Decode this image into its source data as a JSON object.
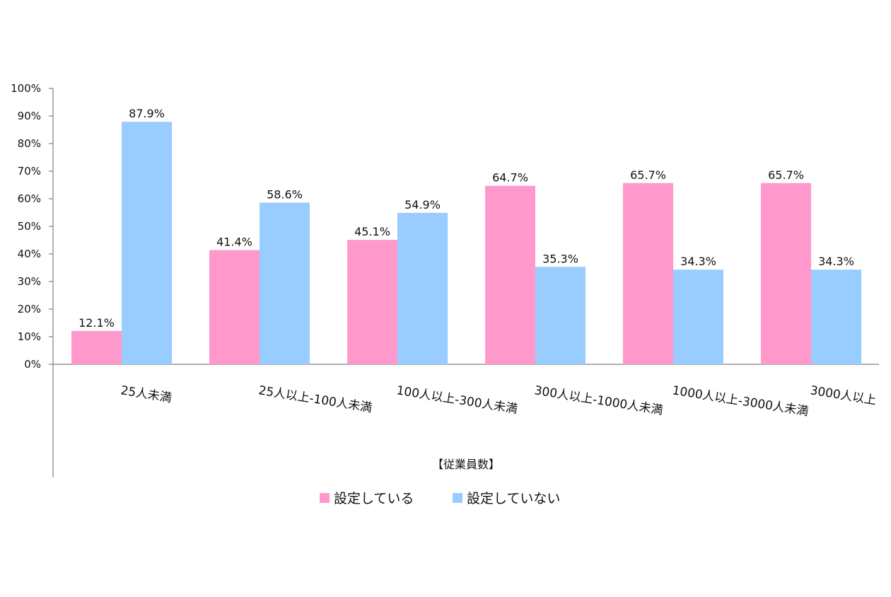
{
  "chart_data": {
    "type": "bar",
    "title": "",
    "xlabel": "【従業員数】",
    "ylabel": "",
    "ylim": [
      0,
      100
    ],
    "y_ticks": [
      0,
      10,
      20,
      30,
      40,
      50,
      60,
      70,
      80,
      90,
      100
    ],
    "y_tick_format": "{v}%",
    "grid": false,
    "legend_position": "bottom",
    "categories": [
      "25人未満",
      "25人以上-100人未満",
      "100人以上-300人未満",
      "300人以上-1000人未満",
      "1000人以上-3000人未満",
      "3000人以上"
    ],
    "series": [
      {
        "name": "設定している",
        "color": "#FF99CC",
        "values": [
          12.1,
          41.4,
          45.1,
          64.7,
          65.7,
          65.7
        ],
        "labels": [
          "12.1%",
          "41.4%",
          "45.1%",
          "64.7%",
          "65.7%",
          "65.7%"
        ]
      },
      {
        "name": "設定していない",
        "color": "#99CCFF",
        "values": [
          87.9,
          58.6,
          54.9,
          35.3,
          34.3,
          34.3
        ],
        "labels": [
          "87.9%",
          "58.6%",
          "54.9%",
          "35.3%",
          "34.3%",
          "34.3%"
        ]
      }
    ]
  }
}
